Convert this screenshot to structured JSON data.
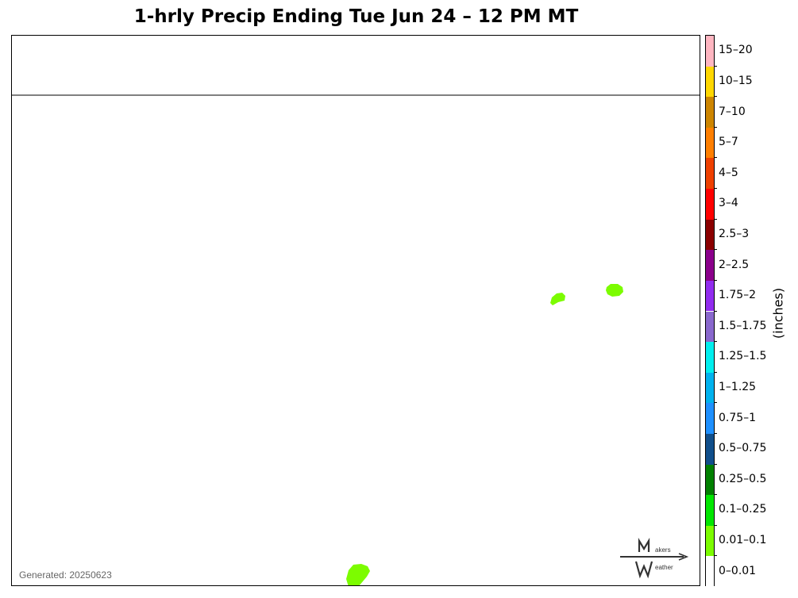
{
  "title": "1-hrly Precip Ending Tue Jun 24 – 12 PM MT",
  "generated": "Generated: 20250623",
  "logo": {
    "text_top": "akers",
    "text_bottom": "eather",
    "icon": "mw-logo-icon"
  },
  "colorbar": {
    "units_label": "(inches)",
    "bins": [
      {
        "label": "0–0.01",
        "color": "#ffffff"
      },
      {
        "label": "0.01–0.1",
        "color": "#7cfc00"
      },
      {
        "label": "0.1–0.25",
        "color": "#00e600"
      },
      {
        "label": "0.25–0.5",
        "color": "#008000"
      },
      {
        "label": "0.5–0.75",
        "color": "#104e8b"
      },
      {
        "label": "0.75–1",
        "color": "#1e90ff"
      },
      {
        "label": "1–1.25",
        "color": "#00b2ee"
      },
      {
        "label": "1.25–1.5",
        "color": "#00eeee"
      },
      {
        "label": "1.5–1.75",
        "color": "#8968cd"
      },
      {
        "label": "1.75–2",
        "color": "#912cee"
      },
      {
        "label": "2–2.5",
        "color": "#8b008b"
      },
      {
        "label": "2.5–3",
        "color": "#8b0000"
      },
      {
        "label": "3–4",
        "color": "#ff0000"
      },
      {
        "label": "4–5",
        "color": "#ee4000"
      },
      {
        "label": "5–7",
        "color": "#ff7f00"
      },
      {
        "label": "7–10",
        "color": "#cd8500"
      },
      {
        "label": "10–15",
        "color": "#ffd700"
      },
      {
        "label": "15–20",
        "color": "#ffb6c1"
      }
    ]
  },
  "precip_areas": [
    {
      "category": "0.01–0.1",
      "color": "#7cfc00"
    },
    {
      "category": "0.01–0.1",
      "color": "#7cfc00"
    },
    {
      "category": "0.01–0.1",
      "color": "#7cfc00"
    }
  ]
}
